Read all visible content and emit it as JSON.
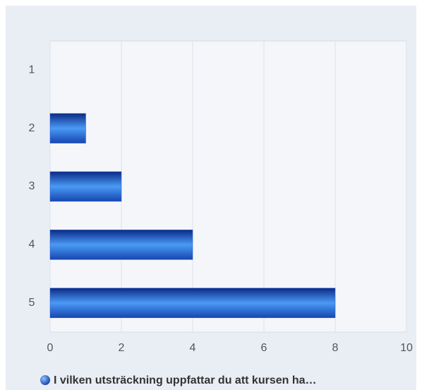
{
  "chart_data": {
    "type": "bar",
    "orientation": "horizontal",
    "categories": [
      "1",
      "2",
      "3",
      "4",
      "5"
    ],
    "series": [
      {
        "name": "I vilken utsträckning uppfattar du att kursen ha…",
        "color": "#1f5fd6",
        "values": [
          0,
          1,
          2,
          4,
          8
        ]
      }
    ],
    "xlim": [
      0,
      10
    ],
    "xticks": [
      0,
      2,
      4,
      6,
      8,
      10
    ],
    "grid": true,
    "legend": "bottom"
  }
}
